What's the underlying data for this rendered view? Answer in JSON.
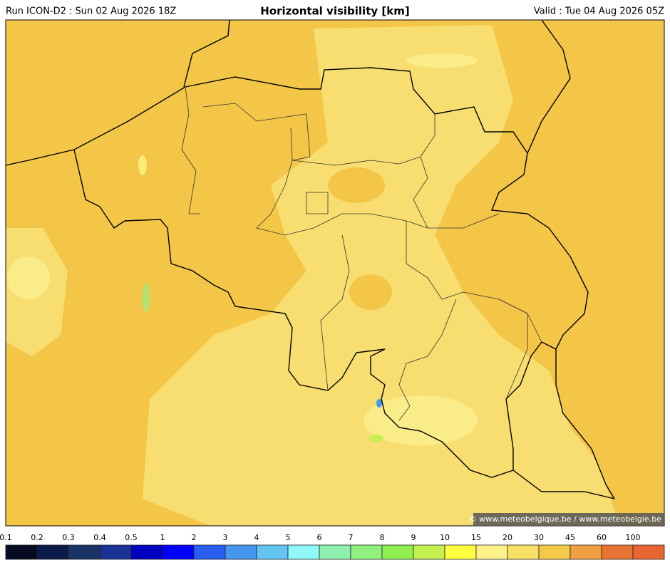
{
  "header": {
    "left": "Run ICON-D2 : Sun 02 Aug 2026 18Z",
    "title": "Horizontal visibility [km]",
    "right": "Valid : Tue 04 Aug 2026 05Z"
  },
  "copyright": "© www.meteobelgique.be / www.meteobelgie.be",
  "colorbar": {
    "labels": [
      "0.1",
      "0.2",
      "0.3",
      "0.4",
      "0.5",
      "1",
      "2",
      "3",
      "4",
      "5",
      "6",
      "7",
      "8",
      "9",
      "10",
      "15",
      "20",
      "30",
      "45",
      "60",
      "100"
    ],
    "colors": [
      "#060b22",
      "#0b1a48",
      "#1a3466",
      "#1a3296",
      "#0000c0",
      "#0000ff",
      "#2a5ef0",
      "#4696f0",
      "#64c4f4",
      "#90f8f8",
      "#90f0b0",
      "#90f080",
      "#90f050",
      "#c4f050",
      "#ffff40",
      "#fff288",
      "#f8e066",
      "#f4c848",
      "#f0a040",
      "#e87434",
      "#e86430"
    ]
  }
}
